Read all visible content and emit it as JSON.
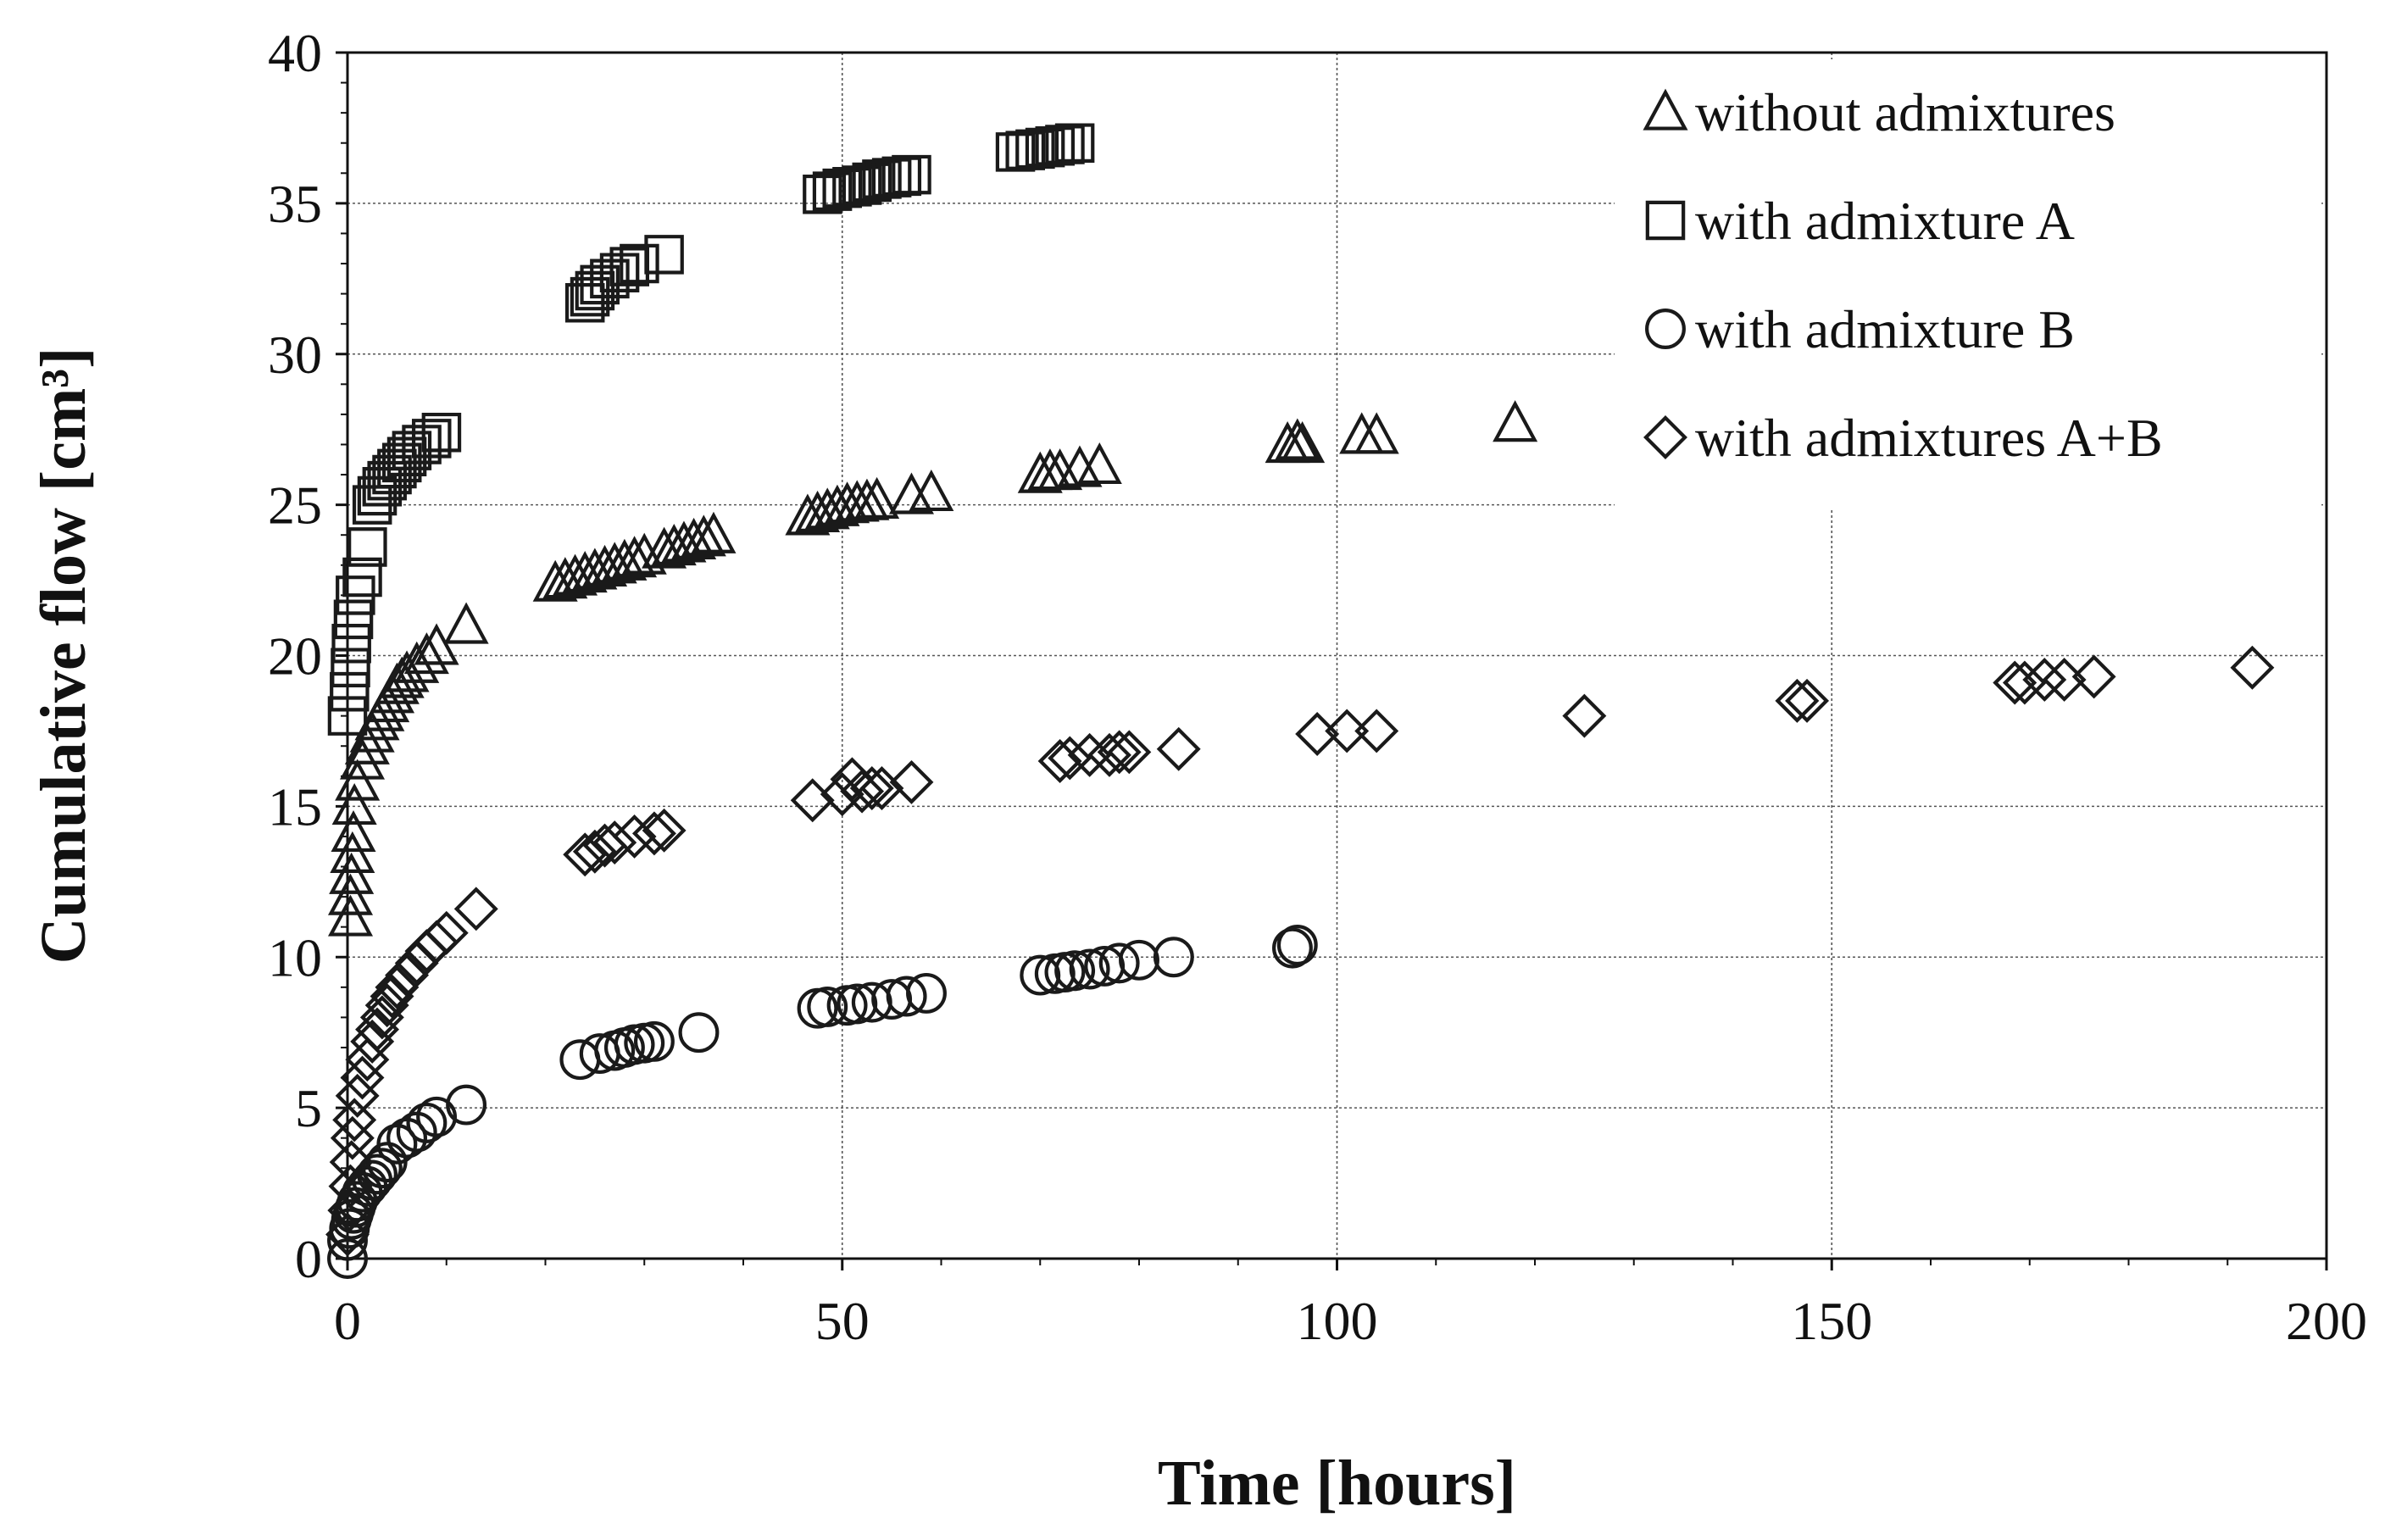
{
  "chart_data": {
    "type": "scatter",
    "title": "",
    "xlabel": "Time [hours]",
    "ylabel": "Cumulative flow [cm³]",
    "xlim": [
      0,
      200
    ],
    "ylim": [
      0,
      40
    ],
    "x_ticks": [
      "0",
      "50",
      "100",
      "150",
      "200"
    ],
    "y_ticks": [
      "0",
      "5",
      "10",
      "15",
      "20",
      "25",
      "30",
      "35",
      "40"
    ],
    "grid": true,
    "legend_position": "top-right",
    "series": [
      {
        "name": "without admixtures",
        "marker": "triangle",
        "points": [
          [
            0.3,
            11.3
          ],
          [
            0.3,
            12.0
          ],
          [
            0.4,
            12.7
          ],
          [
            0.5,
            13.4
          ],
          [
            0.6,
            14.1
          ],
          [
            0.7,
            15.0
          ],
          [
            1.0,
            15.8
          ],
          [
            1.5,
            16.5
          ],
          [
            2.0,
            17.0
          ],
          [
            2.5,
            17.4
          ],
          [
            3.0,
            17.8
          ],
          [
            3.5,
            18.1
          ],
          [
            4.0,
            18.4
          ],
          [
            4.5,
            18.7
          ],
          [
            5.0,
            19.0
          ],
          [
            5.5,
            19.2
          ],
          [
            6.0,
            19.4
          ],
          [
            7.0,
            19.7
          ],
          [
            8.0,
            20.0
          ],
          [
            9.0,
            20.3
          ],
          [
            12.0,
            21.0
          ],
          [
            21.0,
            22.4
          ],
          [
            22.0,
            22.5
          ],
          [
            23.0,
            22.6
          ],
          [
            24.0,
            22.7
          ],
          [
            25.0,
            22.8
          ],
          [
            26.0,
            22.9
          ],
          [
            27.0,
            23.0
          ],
          [
            28.0,
            23.1
          ],
          [
            29.0,
            23.2
          ],
          [
            30.0,
            23.3
          ],
          [
            32.0,
            23.5
          ],
          [
            33.0,
            23.6
          ],
          [
            34.0,
            23.7
          ],
          [
            35.0,
            23.8
          ],
          [
            36.0,
            23.9
          ],
          [
            37.0,
            24.0
          ],
          [
            46.5,
            24.6
          ],
          [
            47.5,
            24.7
          ],
          [
            48.5,
            24.8
          ],
          [
            49.5,
            24.9
          ],
          [
            50.5,
            25.0
          ],
          [
            51.5,
            25.05
          ],
          [
            52.5,
            25.1
          ],
          [
            53.5,
            25.15
          ],
          [
            57.0,
            25.3
          ],
          [
            59.0,
            25.4
          ],
          [
            70.0,
            26.0
          ],
          [
            71.0,
            26.1
          ],
          [
            72.0,
            26.1
          ],
          [
            74.0,
            26.2
          ],
          [
            76.0,
            26.3
          ],
          [
            95.0,
            27.0
          ],
          [
            96.0,
            27.1
          ],
          [
            96.5,
            27.0
          ],
          [
            102.5,
            27.3
          ],
          [
            104.0,
            27.3
          ],
          [
            118.0,
            27.7
          ]
        ]
      },
      {
        "name": "with admixture A",
        "marker": "square",
        "points": [
          [
            0.0,
            18.0
          ],
          [
            0.2,
            18.8
          ],
          [
            0.3,
            19.6
          ],
          [
            0.4,
            20.4
          ],
          [
            0.6,
            21.2
          ],
          [
            0.8,
            22.0
          ],
          [
            1.5,
            22.6
          ],
          [
            2.0,
            23.6
          ],
          [
            2.5,
            25.0
          ],
          [
            3.0,
            25.3
          ],
          [
            3.5,
            25.6
          ],
          [
            4.0,
            25.8
          ],
          [
            4.5,
            26.0
          ],
          [
            5.0,
            26.2
          ],
          [
            5.5,
            26.4
          ],
          [
            6.0,
            26.6
          ],
          [
            6.5,
            26.8
          ],
          [
            7.5,
            27.0
          ],
          [
            8.5,
            27.2
          ],
          [
            9.5,
            27.4
          ],
          [
            24.0,
            31.7
          ],
          [
            24.5,
            31.9
          ],
          [
            25.0,
            32.1
          ],
          [
            25.5,
            32.3
          ],
          [
            26.5,
            32.5
          ],
          [
            27.5,
            32.7
          ],
          [
            28.5,
            32.9
          ],
          [
            29.5,
            33.0
          ],
          [
            32.0,
            33.3
          ],
          [
            48.0,
            35.3
          ],
          [
            49.0,
            35.4
          ],
          [
            50.0,
            35.5
          ],
          [
            51.0,
            35.55
          ],
          [
            52.0,
            35.6
          ],
          [
            53.0,
            35.7
          ],
          [
            54.0,
            35.8
          ],
          [
            55.0,
            35.85
          ],
          [
            56.0,
            35.9
          ],
          [
            57.0,
            35.95
          ],
          [
            67.5,
            36.7
          ],
          [
            68.5,
            36.75
          ],
          [
            69.5,
            36.8
          ],
          [
            70.5,
            36.85
          ],
          [
            71.5,
            36.9
          ],
          [
            72.5,
            36.95
          ],
          [
            73.5,
            37.0
          ]
        ]
      },
      {
        "name": "with admixture B",
        "marker": "circle",
        "points": [
          [
            0.0,
            0.0
          ],
          [
            0.0,
            0.6
          ],
          [
            0.2,
            1.0
          ],
          [
            0.4,
            1.3
          ],
          [
            0.6,
            1.5
          ],
          [
            0.8,
            1.7
          ],
          [
            1.0,
            1.9
          ],
          [
            1.5,
            2.2
          ],
          [
            2.0,
            2.4
          ],
          [
            2.5,
            2.6
          ],
          [
            3.0,
            2.8
          ],
          [
            3.5,
            3.0
          ],
          [
            4.0,
            3.2
          ],
          [
            5.0,
            3.8
          ],
          [
            6.0,
            4.0
          ],
          [
            7.0,
            4.2
          ],
          [
            8.0,
            4.5
          ],
          [
            9.0,
            4.7
          ],
          [
            12.0,
            5.1
          ],
          [
            23.5,
            6.6
          ],
          [
            25.5,
            6.8
          ],
          [
            27.0,
            6.9
          ],
          [
            28.0,
            7.0
          ],
          [
            29.0,
            7.1
          ],
          [
            30.0,
            7.15
          ],
          [
            31.0,
            7.2
          ],
          [
            35.5,
            7.5
          ],
          [
            47.5,
            8.3
          ],
          [
            48.5,
            8.35
          ],
          [
            50.5,
            8.4
          ],
          [
            51.5,
            8.45
          ],
          [
            53.0,
            8.5
          ],
          [
            55.0,
            8.6
          ],
          [
            56.5,
            8.7
          ],
          [
            58.5,
            8.8
          ],
          [
            70.0,
            9.4
          ],
          [
            71.5,
            9.45
          ],
          [
            72.5,
            9.5
          ],
          [
            73.5,
            9.55
          ],
          [
            75.0,
            9.6
          ],
          [
            76.5,
            9.7
          ],
          [
            78.0,
            9.8
          ],
          [
            80.0,
            9.9
          ],
          [
            83.5,
            10.0
          ],
          [
            95.5,
            10.3
          ],
          [
            96.0,
            10.4
          ]
        ]
      },
      {
        "name": "with admixtures A+B",
        "marker": "diamond",
        "points": [
          [
            0.0,
            0.8
          ],
          [
            0.2,
            1.6
          ],
          [
            0.3,
            2.4
          ],
          [
            0.4,
            3.2
          ],
          [
            0.5,
            4.0
          ],
          [
            0.7,
            4.6
          ],
          [
            1.0,
            5.4
          ],
          [
            1.5,
            6.0
          ],
          [
            2.0,
            6.6
          ],
          [
            2.5,
            7.2
          ],
          [
            3.0,
            7.6
          ],
          [
            3.5,
            8.0
          ],
          [
            4.0,
            8.4
          ],
          [
            4.5,
            8.7
          ],
          [
            5.0,
            9.0
          ],
          [
            6.0,
            9.4
          ],
          [
            7.0,
            9.8
          ],
          [
            8.0,
            10.2
          ],
          [
            9.0,
            10.5
          ],
          [
            10.0,
            10.8
          ],
          [
            13.0,
            11.6
          ],
          [
            24.0,
            13.4
          ],
          [
            25.0,
            13.5
          ],
          [
            26.0,
            13.7
          ],
          [
            27.0,
            13.8
          ],
          [
            29.0,
            14.0
          ],
          [
            31.0,
            14.1
          ],
          [
            32.0,
            14.2
          ],
          [
            47.0,
            15.2
          ],
          [
            50.0,
            15.4
          ],
          [
            51.0,
            15.9
          ],
          [
            52.0,
            15.5
          ],
          [
            53.0,
            15.6
          ],
          [
            54.0,
            15.6
          ],
          [
            57.0,
            15.8
          ],
          [
            72.0,
            16.5
          ],
          [
            73.0,
            16.6
          ],
          [
            75.0,
            16.7
          ],
          [
            77.0,
            16.7
          ],
          [
            78.0,
            16.8
          ],
          [
            79.0,
            16.8
          ],
          [
            84.0,
            16.9
          ],
          [
            98.0,
            17.4
          ],
          [
            101.0,
            17.5
          ],
          [
            104.0,
            17.5
          ],
          [
            125.0,
            18.0
          ],
          [
            146.5,
            18.5
          ],
          [
            147.5,
            18.5
          ],
          [
            168.5,
            19.1
          ],
          [
            169.5,
            19.1
          ],
          [
            171.5,
            19.2
          ],
          [
            173.5,
            19.2
          ],
          [
            176.5,
            19.3
          ],
          [
            192.5,
            19.6
          ]
        ]
      }
    ]
  }
}
